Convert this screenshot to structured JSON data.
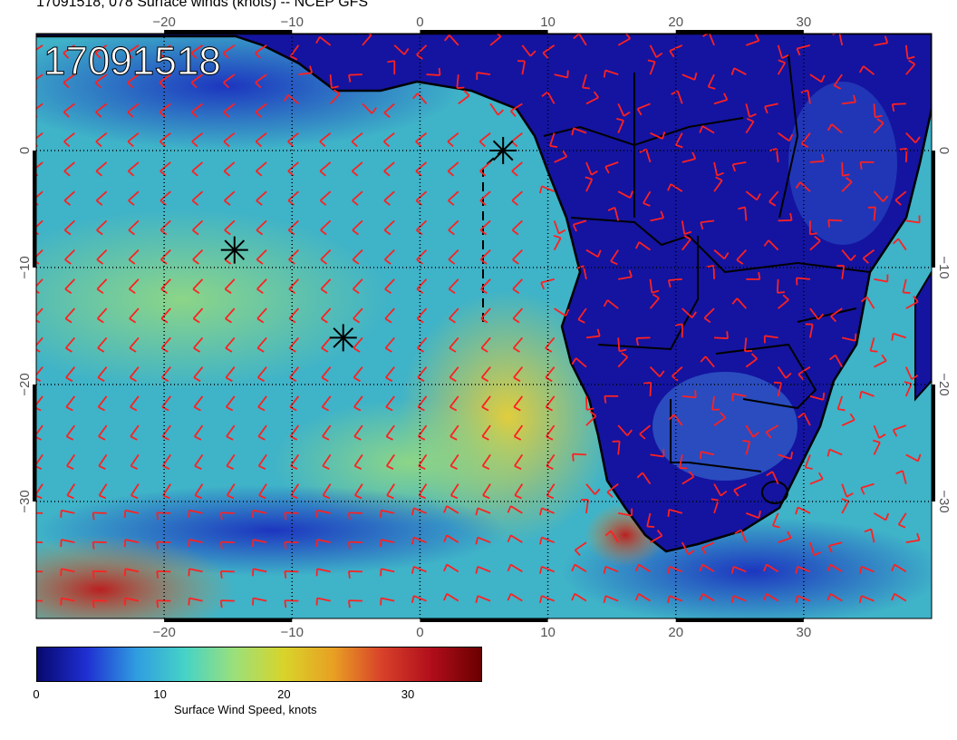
{
  "title": "17091518, 078 Surface winds (knots) -- NCEP GFS",
  "stamp": "17091518",
  "colors": {
    "land": "#1414a0",
    "ocean_mid": "#3fb3c8",
    "barb": "#ff2020",
    "coast": "#000000"
  },
  "axes": {
    "lon_labels": [
      "−20",
      "−10",
      "0",
      "10",
      "20",
      "30"
    ],
    "lat_labels": [
      "0",
      "−10",
      "−20",
      "−30"
    ],
    "lon_values": [
      -20,
      -10,
      0,
      10,
      20,
      30
    ],
    "lat_values": [
      0,
      -10,
      -20,
      -30
    ],
    "lon_range": [
      -30,
      40
    ],
    "lat_range": [
      -40,
      10
    ]
  },
  "storm_markers": [
    {
      "lon": 6.5,
      "lat": 0.0
    },
    {
      "lon": -14.5,
      "lat": -8.5
    },
    {
      "lon": -6.0,
      "lat": -16.0
    }
  ],
  "colorbar": {
    "label": "Surface Wind Speed, knots",
    "ticks": [
      {
        "value": 0,
        "label": "0"
      },
      {
        "value": 10,
        "label": "10"
      },
      {
        "value": 20,
        "label": "20"
      },
      {
        "value": 30,
        "label": "30"
      }
    ],
    "max": 36,
    "stops": [
      "#07086e",
      "#1f2fd2",
      "#2f9ce0",
      "#46d3c6",
      "#9be07a",
      "#d8d42a",
      "#e8a023",
      "#d8402a",
      "#b00d1b",
      "#6a0000"
    ]
  }
}
